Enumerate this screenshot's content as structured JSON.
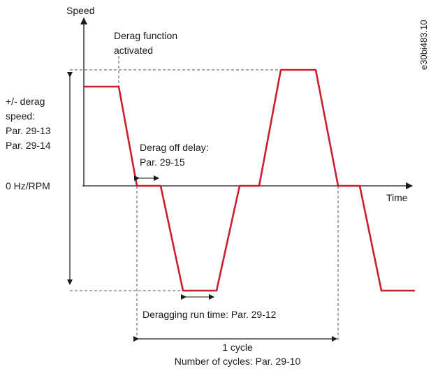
{
  "diagram": {
    "axis_speed": "Speed",
    "axis_time": "Time",
    "zero_label": "0 Hz/RPM",
    "derag_function_line1": "Derag function",
    "derag_function_line2": "activated",
    "derag_speed_line1": "+/- derag",
    "derag_speed_line2": "speed:",
    "derag_speed_line3": "Par. 29-13",
    "derag_speed_line4": "Par. 29-14",
    "off_delay_line1": "Derag off delay:",
    "off_delay_line2": "Par. 29-15",
    "run_time": "Deragging run time: Par. 29-12",
    "cycle": "1 cycle",
    "num_cycles": "Number of cycles: Par. 29-10",
    "figure_id": "e30bi483.10"
  },
  "colors": {
    "curve": "#cc1f2e",
    "axis": "#1a1a1a",
    "dashed": "#555555"
  }
}
